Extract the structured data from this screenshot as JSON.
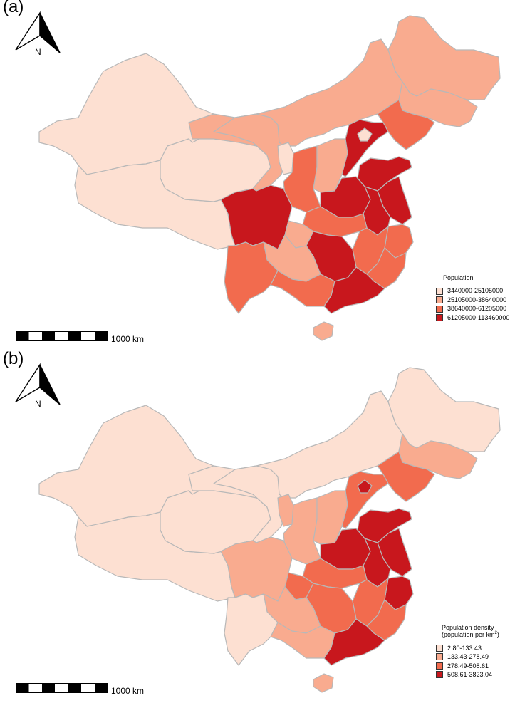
{
  "panels": [
    {
      "label": "(a)",
      "north_letter": "N",
      "scale_text": "1000 km",
      "legend": {
        "title": "Population",
        "title_line2": "",
        "classes": [
          {
            "label": "3440000-25105000",
            "color": "#fde0d2"
          },
          {
            "label": "25105000-38640000",
            "color": "#f9ab8f"
          },
          {
            "label": "38640000-61205000",
            "color": "#f26b4e"
          },
          {
            "label": "61205000-113460000",
            "color": "#c8171d"
          }
        ]
      }
    },
    {
      "label": "(b)",
      "north_letter": "N",
      "scale_text": "1000 km",
      "legend": {
        "title": "Population density",
        "title_line2": "(population per km",
        "title_sup": "2",
        "title_close": ")",
        "classes": [
          {
            "label": "2.80-133.43",
            "color": "#fde0d2"
          },
          {
            "label": "133.43-278.49",
            "color": "#f9ab8f"
          },
          {
            "label": "278.49-508.61",
            "color": "#f26b4e"
          },
          {
            "label": "508.61-3823.04",
            "color": "#c8171d"
          }
        ]
      }
    }
  ],
  "colors": {
    "c1": "#fde0d2",
    "c2": "#f9ab8f",
    "c3": "#f26b4e",
    "c4": "#c8171d",
    "border": "#b8b8b8"
  },
  "regions": [
    {
      "id": "xinjiang",
      "a": "c1",
      "b": "c1"
    },
    {
      "id": "tibet",
      "a": "c1",
      "b": "c1"
    },
    {
      "id": "qinghai",
      "a": "c1",
      "b": "c1"
    },
    {
      "id": "inner-mongolia",
      "a": "c2",
      "b": "c1"
    },
    {
      "id": "heilongjiang",
      "a": "c2",
      "b": "c1"
    },
    {
      "id": "jilin",
      "a": "c2",
      "b": "c2"
    },
    {
      "id": "liaoning",
      "a": "c3",
      "b": "c3"
    },
    {
      "id": "gansu",
      "a": "c2",
      "b": "c1"
    },
    {
      "id": "ningxia",
      "a": "c1",
      "b": "c2"
    },
    {
      "id": "shaanxi",
      "a": "c3",
      "b": "c2"
    },
    {
      "id": "shanxi",
      "a": "c2",
      "b": "c2"
    },
    {
      "id": "hebei",
      "a": "c4",
      "b": "c3"
    },
    {
      "id": "beijing",
      "a": "c1",
      "b": "c4"
    },
    {
      "id": "shandong",
      "a": "c4",
      "b": "c4"
    },
    {
      "id": "henan",
      "a": "c4",
      "b": "c4"
    },
    {
      "id": "jiangsu",
      "a": "c4",
      "b": "c4"
    },
    {
      "id": "anhui",
      "a": "c4",
      "b": "c4"
    },
    {
      "id": "hubei",
      "a": "c3",
      "b": "c3"
    },
    {
      "id": "sichuan",
      "a": "c4",
      "b": "c2"
    },
    {
      "id": "chongqing",
      "a": "c2",
      "b": "c3"
    },
    {
      "id": "zhejiang",
      "a": "c3",
      "b": "c4"
    },
    {
      "id": "jiangxi",
      "a": "c3",
      "b": "c3"
    },
    {
      "id": "hunan",
      "a": "c4",
      "b": "c3"
    },
    {
      "id": "fujian",
      "a": "c3",
      "b": "c3"
    },
    {
      "id": "guizhou",
      "a": "c2",
      "b": "c2"
    },
    {
      "id": "yunnan",
      "a": "c3",
      "b": "c1"
    },
    {
      "id": "guangxi",
      "a": "c3",
      "b": "c2"
    },
    {
      "id": "guangdong",
      "a": "c4",
      "b": "c4"
    },
    {
      "id": "hainan",
      "a": "c2",
      "b": "c2"
    }
  ]
}
